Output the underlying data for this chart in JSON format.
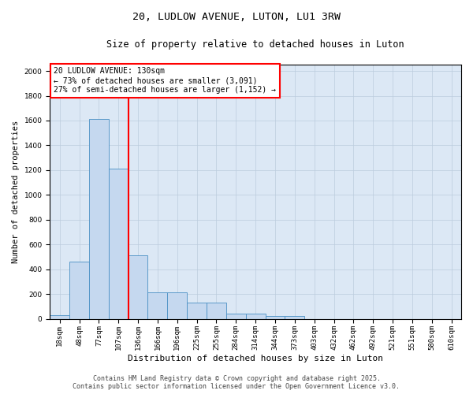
{
  "title": "20, LUDLOW AVENUE, LUTON, LU1 3RW",
  "subtitle": "Size of property relative to detached houses in Luton",
  "xlabel": "Distribution of detached houses by size in Luton",
  "ylabel": "Number of detached properties",
  "categories": [
    "18sqm",
    "48sqm",
    "77sqm",
    "107sqm",
    "136sqm",
    "166sqm",
    "196sqm",
    "225sqm",
    "255sqm",
    "284sqm",
    "314sqm",
    "344sqm",
    "373sqm",
    "403sqm",
    "432sqm",
    "462sqm",
    "492sqm",
    "521sqm",
    "551sqm",
    "580sqm",
    "610sqm"
  ],
  "values": [
    30,
    460,
    1610,
    1210,
    510,
    215,
    215,
    130,
    130,
    40,
    40,
    20,
    20,
    0,
    0,
    0,
    0,
    0,
    0,
    0,
    0
  ],
  "bar_color": "#c5d8ef",
  "bar_edge_color": "#4a90c4",
  "vline_color": "red",
  "vline_x_index": 3.5,
  "annotation_text": "20 LUDLOW AVENUE: 130sqm\n← 73% of detached houses are smaller (3,091)\n27% of semi-detached houses are larger (1,152) →",
  "annotation_box_color": "white",
  "annotation_box_edge_color": "red",
  "ylim": [
    0,
    2050
  ],
  "yticks": [
    0,
    200,
    400,
    600,
    800,
    1000,
    1200,
    1400,
    1600,
    1800,
    2000
  ],
  "grid_color": "#bbccdd",
  "background_color": "#dce8f5",
  "footer_line1": "Contains HM Land Registry data © Crown copyright and database right 2025.",
  "footer_line2": "Contains public sector information licensed under the Open Government Licence v3.0.",
  "title_fontsize": 9.5,
  "subtitle_fontsize": 8.5,
  "xlabel_fontsize": 8,
  "ylabel_fontsize": 7.5,
  "tick_fontsize": 6.5,
  "annotation_fontsize": 7,
  "footer_fontsize": 6
}
